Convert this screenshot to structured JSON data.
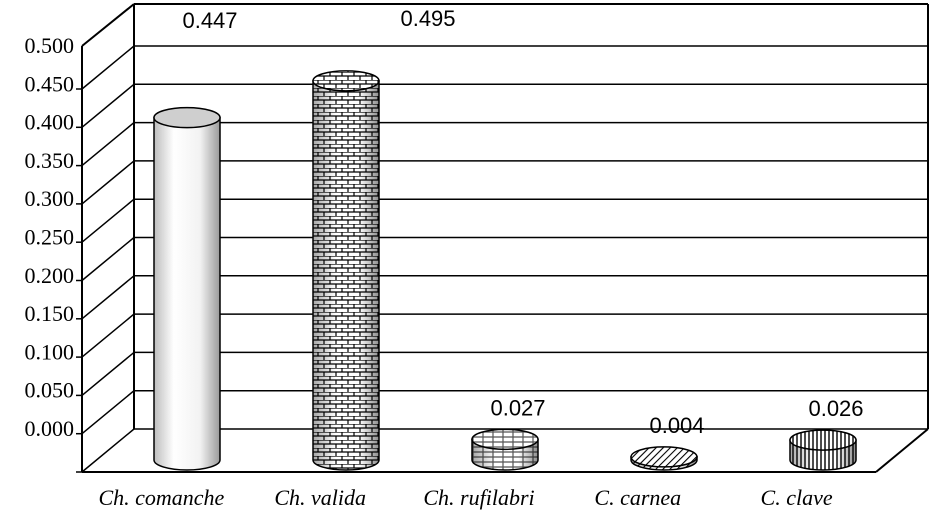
{
  "chart_data": {
    "type": "bar",
    "categories": [
      "Ch. comanche",
      "Ch. valida",
      "Ch. rufilabri",
      "C. carnea",
      "C. clave"
    ],
    "values": [
      0.447,
      0.495,
      0.027,
      0.004,
      0.026
    ],
    "data_labels": [
      "0.447",
      "0.495",
      "0.027",
      "0.004",
      "0.026"
    ],
    "yticks": [
      "0.000",
      "0.050",
      "0.100",
      "0.150",
      "0.200",
      "0.250",
      "0.300",
      "0.350",
      "0.400",
      "0.450",
      "0.500"
    ],
    "ylim": [
      0,
      0.5
    ],
    "grid": true,
    "style": "3d-cylinder",
    "legend": "none",
    "patterns": [
      "plain",
      "brick",
      "plaid",
      "diagonal",
      "vertical"
    ]
  }
}
